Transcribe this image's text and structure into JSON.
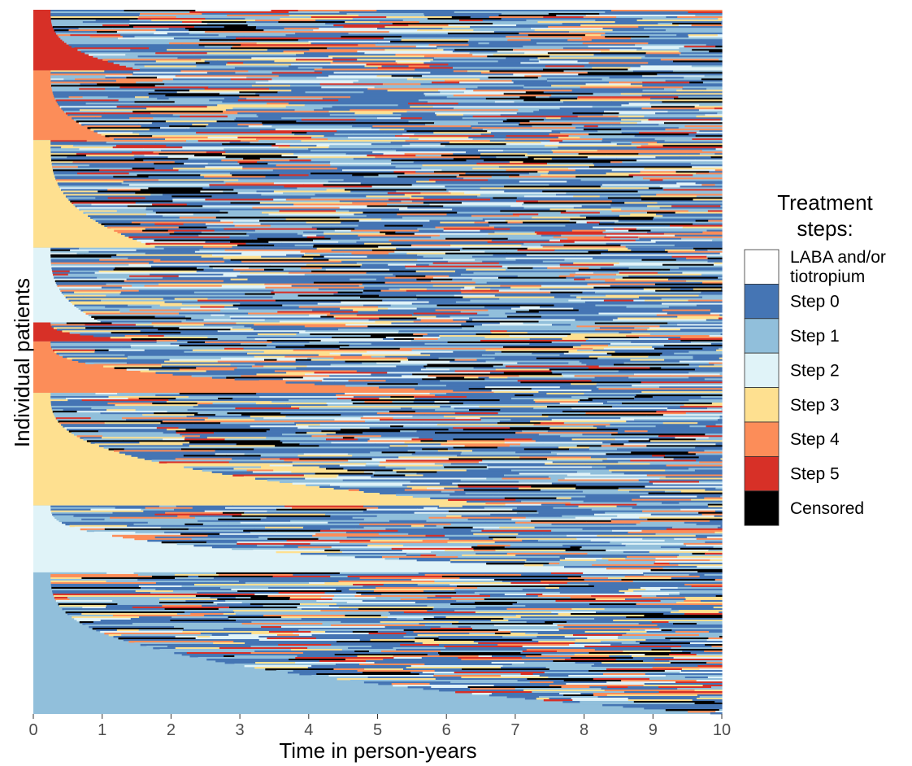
{
  "chart_data": {
    "type": "sequence_index_plot",
    "xlabel": "Time in person-years",
    "ylabel": "Individual patients",
    "xlim": [
      0,
      10
    ],
    "x_ticks": [
      0,
      1,
      2,
      3,
      4,
      5,
      6,
      7,
      8,
      9,
      10
    ],
    "legend": {
      "title": [
        "Treatment",
        "steps:"
      ],
      "placement": "right",
      "entries": [
        {
          "label": [
            "LABA and/or",
            "tiotropium"
          ],
          "color": "#ffffff"
        },
        {
          "label": [
            "Step 0"
          ],
          "color": "#4575b4"
        },
        {
          "label": [
            "Step 1"
          ],
          "color": "#91bfdb"
        },
        {
          "label": [
            "Step 2"
          ],
          "color": "#e0f3f8"
        },
        {
          "label": [
            "Step 3"
          ],
          "color": "#fee090"
        },
        {
          "label": [
            "Step 4"
          ],
          "color": "#fc8d59"
        },
        {
          "label": [
            "Step 5"
          ],
          "color": "#d73027"
        },
        {
          "label": [
            "Censored"
          ],
          "color": "#000000"
        }
      ]
    },
    "groups": [
      {
        "start_state": "Step 5",
        "share": 0.086,
        "curve_end_year": 1.6,
        "followup_end": 10
      },
      {
        "start_state": "Step 4",
        "share": 0.099,
        "curve_end_year": 1.2,
        "followup_end": 10
      },
      {
        "start_state": "Step 3",
        "share": 0.153,
        "curve_end_year": 1.8,
        "followup_end": 10
      },
      {
        "start_state": "Step 2",
        "share": 0.106,
        "curve_end_year": 1.0,
        "followup_end": 10
      },
      {
        "start_state": "Step 5",
        "share": 0.027,
        "curve_end_year": 2.0,
        "followup_end": 10
      },
      {
        "start_state": "Step 4",
        "share": 0.073,
        "curve_end_year": 7.0,
        "followup_end": 10
      },
      {
        "start_state": "Step 3",
        "share": 0.16,
        "curve_end_year": 7.0,
        "followup_end": 10
      },
      {
        "start_state": "Step 2",
        "share": 0.095,
        "curve_end_year": 10.0,
        "followup_end": 10
      },
      {
        "start_state": "Step 1",
        "share": 0.201,
        "curve_end_year": 10.0,
        "followup_end": 10
      }
    ]
  }
}
